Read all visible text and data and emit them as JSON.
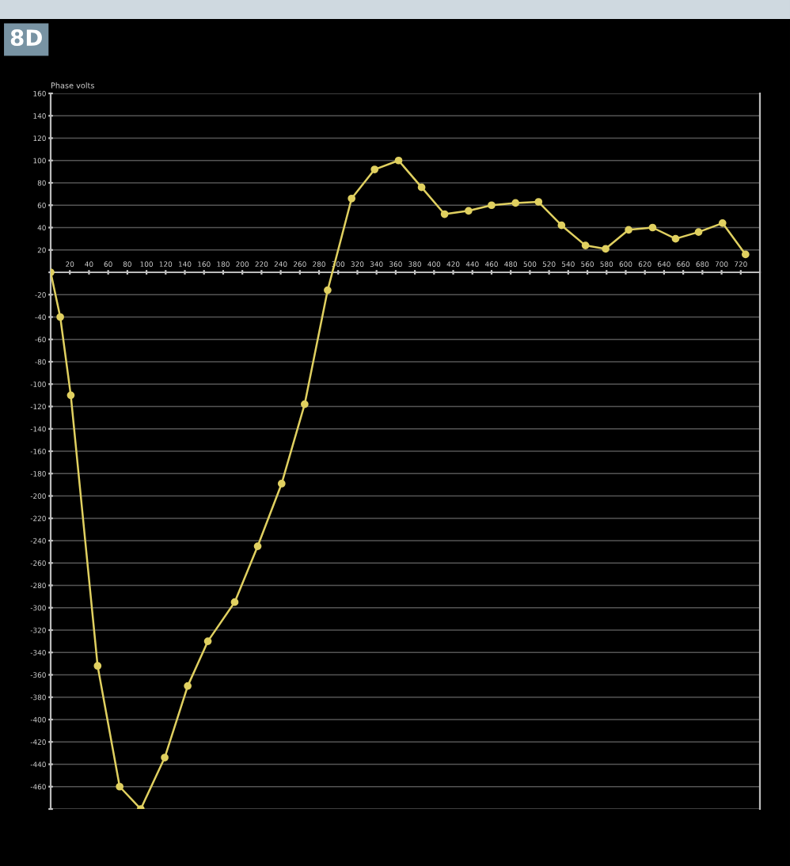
{
  "chart_data": {
    "type": "line",
    "title": "8D",
    "ylabel": "Phase volts",
    "x": [
      0,
      10,
      21,
      49,
      72,
      94,
      119,
      143,
      164,
      192,
      216,
      241,
      265,
      289,
      314,
      338,
      363,
      387,
      411,
      436,
      460,
      485,
      509,
      533,
      558,
      579,
      603,
      628,
      652,
      676,
      701,
      725
    ],
    "series": [
      {
        "color": "#e0d060",
        "values": [
          0,
          -40,
          -110,
          -352,
          -460,
          -480,
          -434,
          -370,
          -330,
          -295,
          -245,
          -189,
          -118,
          -16,
          66,
          92,
          100,
          76,
          52,
          55,
          60,
          62,
          63,
          42,
          24,
          21,
          38,
          40,
          30,
          36,
          44,
          16
        ]
      }
    ],
    "marker": "circle",
    "line_style": "solid",
    "grid": "y",
    "xlim": [
      0,
      740
    ],
    "xticks": [
      20,
      40,
      60,
      80,
      100,
      120,
      140,
      160,
      180,
      200,
      220,
      240,
      260,
      280,
      300,
      320,
      340,
      360,
      380,
      400,
      420,
      440,
      460,
      480,
      500,
      520,
      540,
      560,
      580,
      600,
      620,
      640,
      660,
      680,
      700,
      720
    ],
    "ylim": [
      -480,
      160
    ],
    "yticks": [
      {
        "value": -480,
        "label": null
      },
      -460,
      -440,
      -420,
      -400,
      -380,
      -360,
      -340,
      -320,
      -300,
      -280,
      -260,
      -240,
      -220,
      -200,
      -180,
      -160,
      -140,
      -120,
      -100,
      -80,
      -60,
      -40,
      -20,
      {
        "value": 0,
        "label": null
      },
      20,
      40,
      60,
      80,
      100,
      120,
      140,
      160
    ]
  }
}
